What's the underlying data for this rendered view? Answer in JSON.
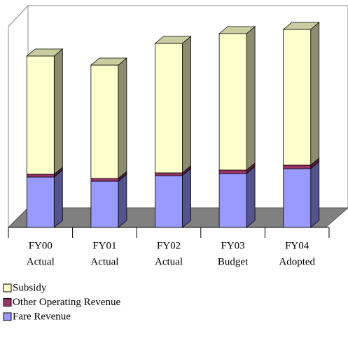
{
  "chart_data": {
    "type": "bar3d_stacked",
    "categories": [
      [
        "FY00",
        "Actual"
      ],
      [
        "FY01",
        "Actual"
      ],
      [
        "FY02",
        "Actual"
      ],
      [
        "FY03",
        "Budget"
      ],
      [
        "FY04",
        "Adopted"
      ]
    ],
    "series": [
      {
        "name": "Fare Revenue",
        "color": "#9999ff",
        "values": [
          72,
          66,
          74,
          77,
          84
        ]
      },
      {
        "name": "Other Operating Revenue",
        "color": "#993366",
        "values": [
          4,
          4,
          4,
          5,
          5
        ]
      },
      {
        "name": "Subsidy",
        "color": "#ffffcc",
        "values": [
          169,
          162,
          185,
          195,
          194
        ]
      }
    ],
    "ylim": [
      0,
      300
    ]
  }
}
